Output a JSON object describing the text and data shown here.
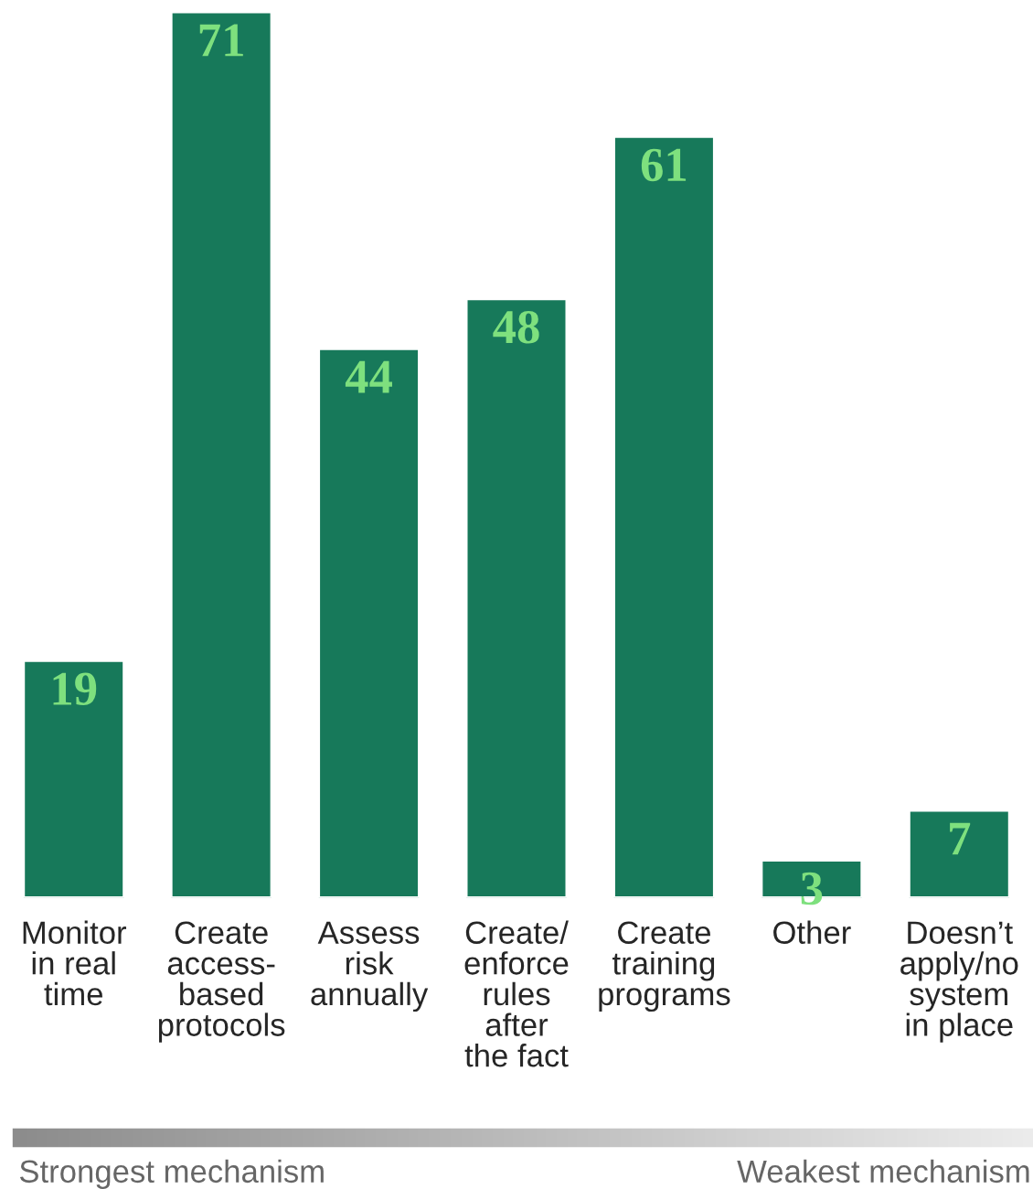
{
  "chart_data": {
    "type": "bar",
    "categories": [
      "Monitor\nin real\ntime",
      "Create\naccess-\nbased\nprotocols",
      "Assess\nrisk\nannually",
      "Create/\nenforce\nrules\nafter\nthe fact",
      "Create\ntraining\nprograms",
      "Other",
      "Doesn’t\napply/no\nsystem\nin place"
    ],
    "values": [
      19,
      71,
      44,
      48,
      61,
      3,
      7
    ],
    "color": "#17795a",
    "data_labels": true,
    "annotations": [
      "Strongest mechanism",
      "Weakest mechanism"
    ]
  }
}
